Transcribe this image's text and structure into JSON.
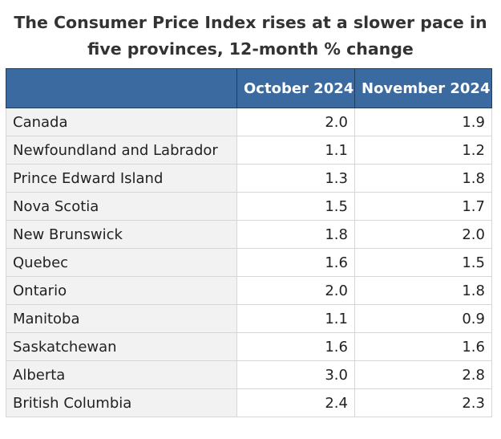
{
  "chart_data": {
    "type": "table",
    "title": "The Consumer Price Index rises at a slower pace in five provinces, 12-month % change",
    "columns": [
      "",
      "October 2024",
      "November 2024"
    ],
    "rows": [
      {
        "region": "Canada",
        "october_2024": "2.0",
        "november_2024": "1.9"
      },
      {
        "region": "Newfoundland and Labrador",
        "october_2024": "1.1",
        "november_2024": "1.2"
      },
      {
        "region": "Prince Edward Island",
        "october_2024": "1.3",
        "november_2024": "1.8"
      },
      {
        "region": "Nova Scotia",
        "october_2024": "1.5",
        "november_2024": "1.7"
      },
      {
        "region": "New Brunswick",
        "october_2024": "1.8",
        "november_2024": "2.0"
      },
      {
        "region": "Quebec",
        "october_2024": "1.6",
        "november_2024": "1.5"
      },
      {
        "region": "Ontario",
        "october_2024": "2.0",
        "november_2024": "1.8"
      },
      {
        "region": "Manitoba",
        "october_2024": "1.1",
        "november_2024": "0.9"
      },
      {
        "region": "Saskatchewan",
        "october_2024": "1.6",
        "november_2024": "1.6"
      },
      {
        "region": "Alberta",
        "october_2024": "3.0",
        "november_2024": "2.8"
      },
      {
        "region": "British Columbia",
        "october_2024": "2.4",
        "november_2024": "2.3"
      }
    ]
  },
  "colors": {
    "header_background": "#3a6a9f",
    "header_text": "#ffffff",
    "region_cell_background": "#f2f2f2",
    "value_cell_background": "#ffffff",
    "grid_line": "#d6d6d6"
  }
}
